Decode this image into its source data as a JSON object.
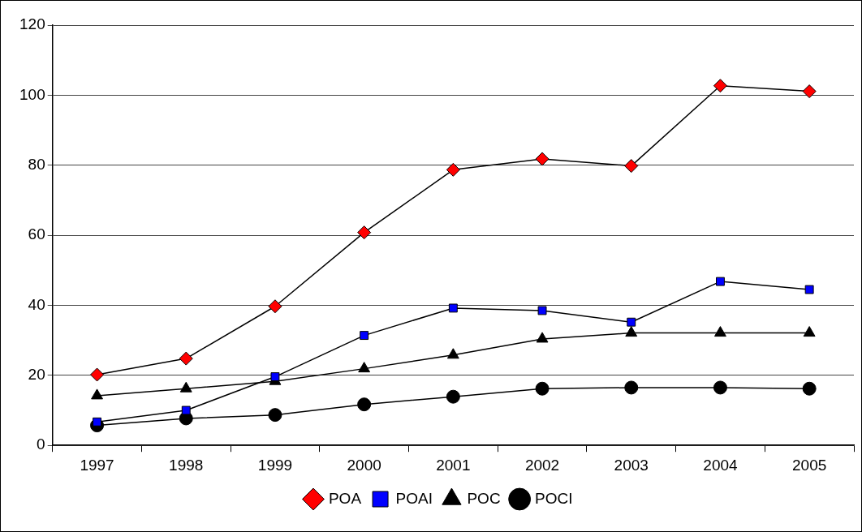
{
  "chart_data": {
    "type": "line",
    "categories": [
      "1997",
      "1998",
      "1999",
      "2000",
      "2001",
      "2002",
      "2003",
      "2004",
      "2005"
    ],
    "ylim": [
      0,
      120
    ],
    "yticks": [
      0,
      20,
      40,
      60,
      80,
      100,
      120
    ],
    "grid": "y",
    "legend": "bottom",
    "line_style": "solid",
    "series": [
      {
        "name": "POA",
        "color": "#ff0000",
        "marker": "diamond",
        "values": [
          20.2,
          24.8,
          39.7,
          60.8,
          78.7,
          81.8,
          79.8,
          102.7,
          101.1
        ]
      },
      {
        "name": "POAI",
        "color": "#0000ff",
        "marker": "square",
        "values": [
          6.7,
          10,
          19.6,
          31.4,
          39.2,
          38.5,
          35.2,
          46.8,
          44.5
        ]
      },
      {
        "name": "POC",
        "color": "#000000",
        "marker": "triangle",
        "values": [
          14.2,
          16.2,
          18.3,
          21.9,
          25.8,
          30.4,
          32.1,
          32.1,
          32.1
        ]
      },
      {
        "name": "POCI",
        "color": "#000000",
        "marker": "circle",
        "values": [
          5.7,
          7.7,
          8.7,
          11.7,
          13.9,
          16.2,
          16.5,
          16.5,
          16.2
        ]
      }
    ]
  }
}
